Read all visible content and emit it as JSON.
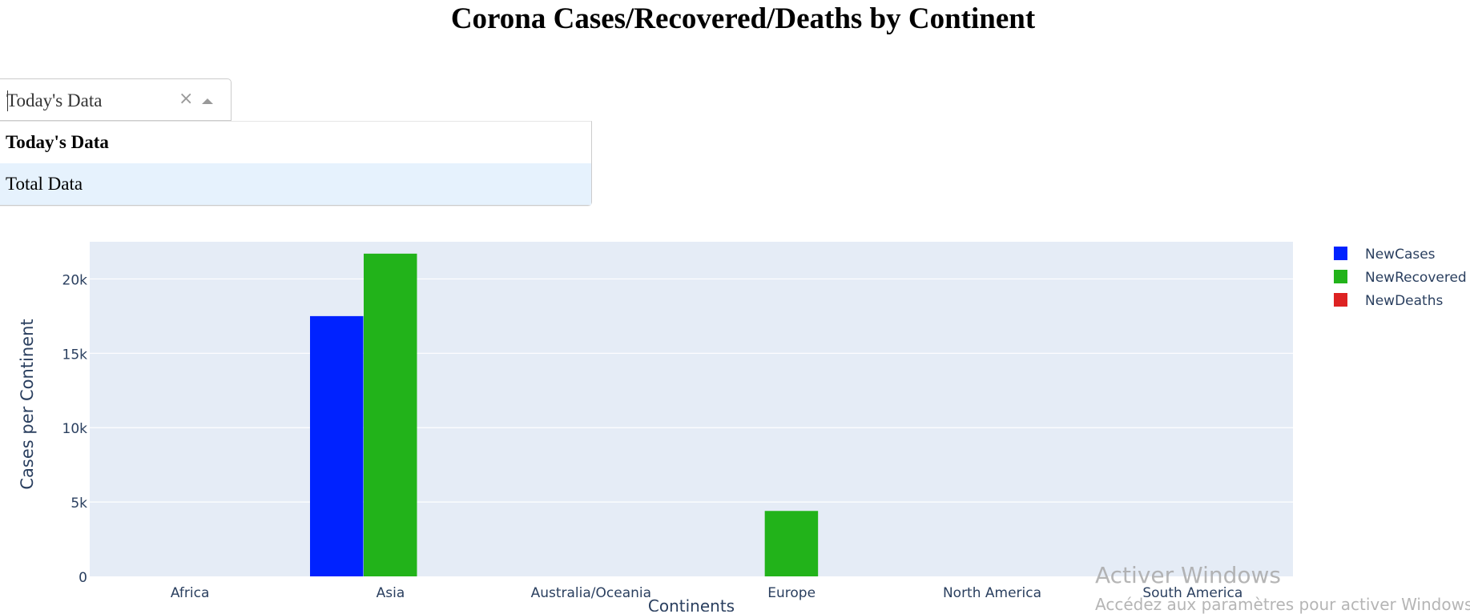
{
  "page": {
    "title": "Corona Cases/Recovered/Deaths by Continent"
  },
  "dropdown": {
    "value": "Today's Data",
    "clear_icon": "×",
    "options": [
      "Today's Data",
      "Total Data"
    ]
  },
  "chart_data": {
    "type": "bar",
    "categories": [
      "Africa",
      "Asia",
      "Australia/Oceania",
      "Europe",
      "North America",
      "South America"
    ],
    "series": [
      {
        "name": "NewCases",
        "color": "#0022ff",
        "values": [
          0,
          17500,
          0,
          0,
          0,
          0
        ]
      },
      {
        "name": "NewRecovered",
        "color": "#22b31a",
        "values": [
          0,
          21700,
          0,
          4400,
          0,
          0
        ]
      },
      {
        "name": "NewDeaths",
        "color": "#dd2222",
        "values": [
          0,
          0,
          0,
          0,
          0,
          0
        ]
      }
    ],
    "xlabel": "Continents",
    "ylabel": "Cases per Continent",
    "ylim": [
      0,
      22500
    ],
    "yticks": [
      0,
      5000,
      10000,
      15000,
      20000
    ],
    "ytick_labels": [
      "0",
      "5k",
      "10k",
      "15k",
      "20k"
    ],
    "plot_bg": "#e5ecf6",
    "grid": true,
    "legend": "top-right"
  },
  "watermark": {
    "line1": "Activer Windows",
    "line2": "Accédez aux paramètres pour activer Windows."
  }
}
